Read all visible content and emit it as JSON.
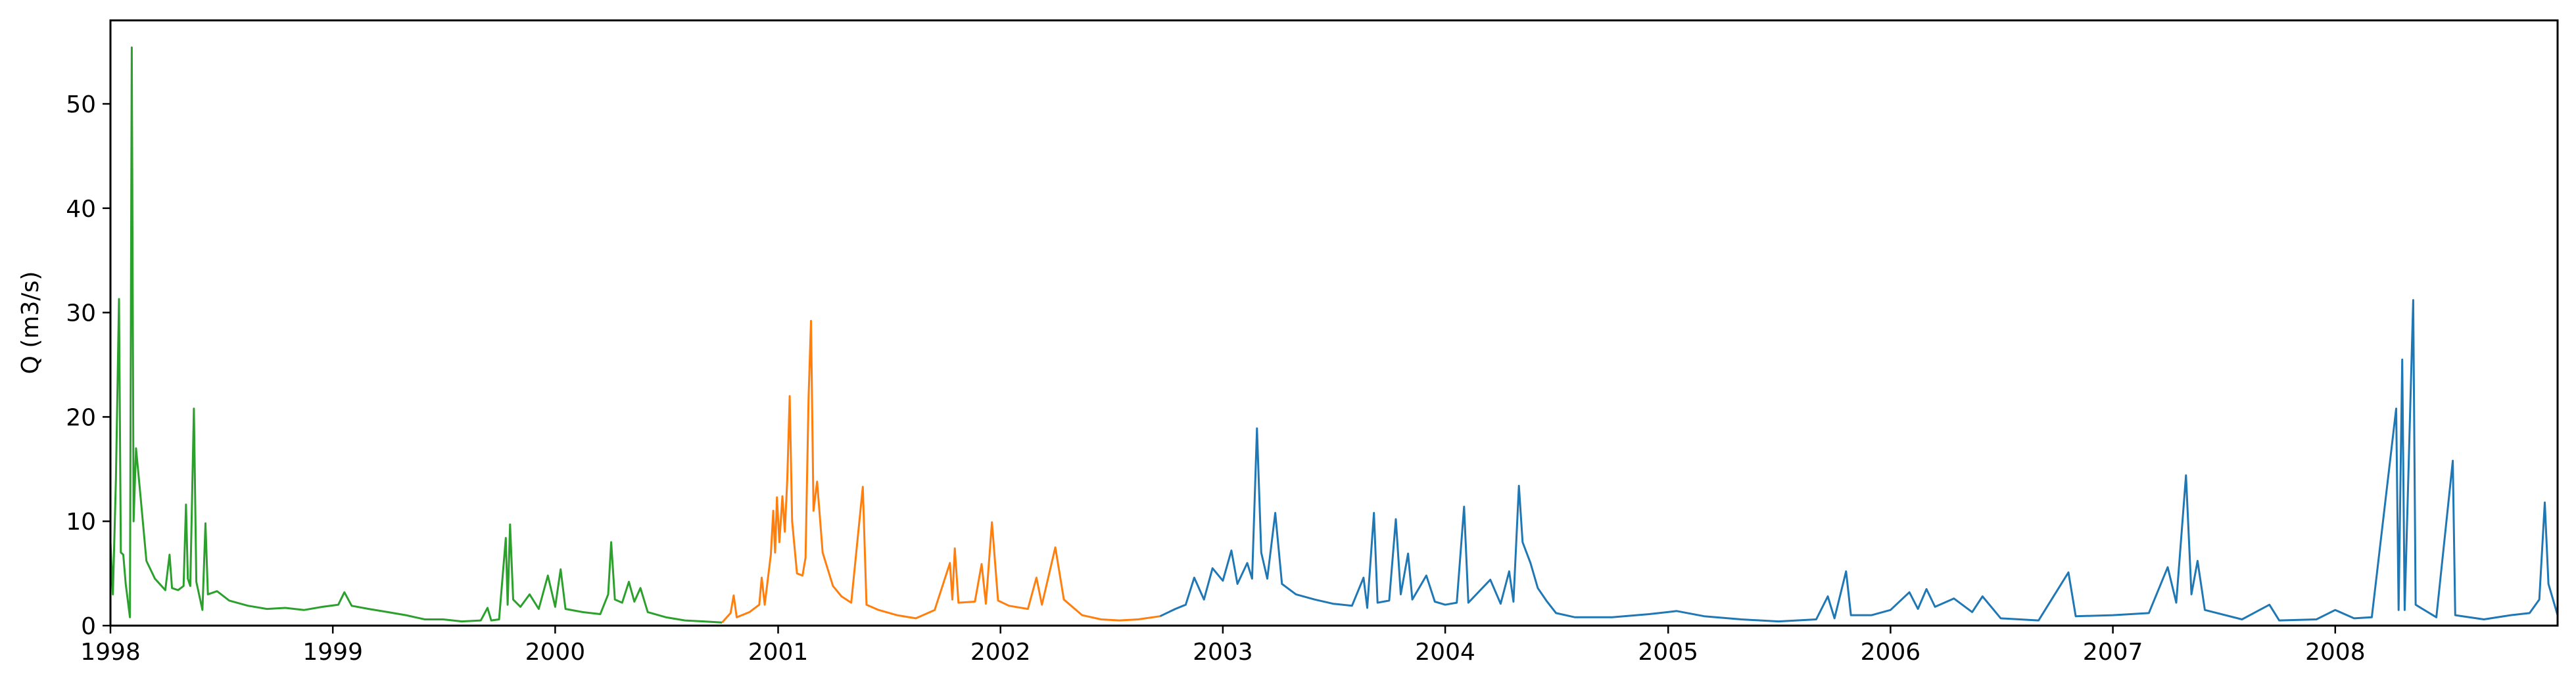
{
  "chart_data": {
    "type": "line",
    "title": "",
    "xlabel": "",
    "ylabel": "Q (m3/s)",
    "xlim": [
      "1998-01-01",
      "2008-12-31"
    ],
    "ylim": [
      0,
      58
    ],
    "grid": false,
    "x_ticks": [
      "1998",
      "1999",
      "2000",
      "2001",
      "2002",
      "2003",
      "2004",
      "2005",
      "2006",
      "2007",
      "2008"
    ],
    "y_ticks": [
      "0",
      "10",
      "20",
      "30",
      "40",
      "50"
    ],
    "y_tick_values": [
      0,
      10,
      20,
      30,
      40,
      50
    ],
    "series": [
      {
        "color": "#2ca02c",
        "points": [
          [
            "1998-01-01",
            8
          ],
          [
            "1998-01-05",
            3
          ],
          [
            "1998-01-10",
            14
          ],
          [
            "1998-01-15",
            31.3
          ],
          [
            "1998-01-18",
            7
          ],
          [
            "1998-01-22",
            6.8
          ],
          [
            "1998-01-26",
            4
          ],
          [
            "1998-02-02",
            0.8
          ],
          [
            "1998-02-05",
            55.4
          ],
          [
            "1998-02-08",
            10
          ],
          [
            "1998-02-12",
            17
          ],
          [
            "1998-02-20",
            12
          ],
          [
            "1998-03-01",
            6.2
          ],
          [
            "1998-03-15",
            4.5
          ],
          [
            "1998-04-01",
            3.4
          ],
          [
            "1998-04-08",
            6.8
          ],
          [
            "1998-04-12",
            3.6
          ],
          [
            "1998-04-22",
            3.4
          ],
          [
            "1998-05-01",
            3.8
          ],
          [
            "1998-05-05",
            11.6
          ],
          [
            "1998-05-08",
            4.5
          ],
          [
            "1998-05-12",
            3.8
          ],
          [
            "1998-05-18",
            20.8
          ],
          [
            "1998-05-22",
            4.2
          ],
          [
            "1998-06-01",
            1.5
          ],
          [
            "1998-06-06",
            9.8
          ],
          [
            "1998-06-10",
            3
          ],
          [
            "1998-06-25",
            3.3
          ],
          [
            "1998-07-15",
            2.4
          ],
          [
            "1998-08-15",
            1.9
          ],
          [
            "1998-09-15",
            1.6
          ],
          [
            "1998-10-15",
            1.7
          ],
          [
            "1998-11-15",
            1.5
          ],
          [
            "1998-12-15",
            1.8
          ],
          [
            "1999-01-10",
            2
          ],
          [
            "1999-01-20",
            3.2
          ],
          [
            "1999-02-01",
            1.9
          ],
          [
            "1999-03-01",
            1.6
          ],
          [
            "1999-04-01",
            1.3
          ],
          [
            "1999-05-01",
            1
          ],
          [
            "1999-06-01",
            0.6
          ],
          [
            "1999-07-01",
            0.6
          ],
          [
            "1999-08-01",
            0.4
          ],
          [
            "1999-09-01",
            0.5
          ],
          [
            "1999-09-12",
            1.7
          ],
          [
            "1999-09-18",
            0.5
          ],
          [
            "1999-10-01",
            0.6
          ],
          [
            "1999-10-12",
            8.4
          ],
          [
            "1999-10-15",
            2
          ],
          [
            "1999-10-19",
            9.7
          ],
          [
            "1999-10-24",
            2.5
          ],
          [
            "1999-11-05",
            1.8
          ],
          [
            "1999-11-20",
            3
          ],
          [
            "1999-12-05",
            1.6
          ],
          [
            "1999-12-20",
            4.8
          ],
          [
            "2000-01-01",
            1.8
          ],
          [
            "2000-01-10",
            5.4
          ],
          [
            "2000-01-18",
            1.6
          ],
          [
            "2000-02-15",
            1.3
          ],
          [
            "2000-03-15",
            1.1
          ],
          [
            "2000-03-28",
            3
          ],
          [
            "2000-04-02",
            8
          ],
          [
            "2000-04-08",
            2.5
          ],
          [
            "2000-04-20",
            2.2
          ],
          [
            "2000-05-01",
            4.2
          ],
          [
            "2000-05-10",
            2.3
          ],
          [
            "2000-05-20",
            3.6
          ],
          [
            "2000-06-01",
            1.3
          ],
          [
            "2000-07-01",
            0.8
          ],
          [
            "2000-08-01",
            0.5
          ],
          [
            "2000-09-01",
            0.4
          ],
          [
            "2000-10-01",
            0.3
          ]
        ]
      },
      {
        "color": "#ff7f0e",
        "points": [
          [
            "2000-10-01",
            0.3
          ],
          [
            "2000-10-15",
            1.2
          ],
          [
            "2000-10-20",
            2.9
          ],
          [
            "2000-10-25",
            0.8
          ],
          [
            "2000-11-15",
            1.3
          ],
          [
            "2000-12-01",
            2
          ],
          [
            "2000-12-05",
            4.6
          ],
          [
            "2000-12-10",
            2
          ],
          [
            "2000-12-20",
            6.8
          ],
          [
            "2000-12-24",
            11
          ],
          [
            "2000-12-27",
            7
          ],
          [
            "2000-12-30",
            12.3
          ],
          [
            "2001-01-03",
            8
          ],
          [
            "2001-01-08",
            12.4
          ],
          [
            "2001-01-12",
            9
          ],
          [
            "2001-01-16",
            14
          ],
          [
            "2001-01-20",
            22
          ],
          [
            "2001-01-24",
            10
          ],
          [
            "2001-02-01",
            5
          ],
          [
            "2001-02-10",
            4.8
          ],
          [
            "2001-02-15",
            6.5
          ],
          [
            "2001-02-20",
            21.8
          ],
          [
            "2001-02-24",
            29.2
          ],
          [
            "2001-02-28",
            11
          ],
          [
            "2001-03-06",
            13.8
          ],
          [
            "2001-03-15",
            7
          ],
          [
            "2001-04-01",
            3.8
          ],
          [
            "2001-04-15",
            2.8
          ],
          [
            "2001-05-01",
            2.2
          ],
          [
            "2001-05-20",
            13.3
          ],
          [
            "2001-05-26",
            2
          ],
          [
            "2001-06-15",
            1.5
          ],
          [
            "2001-07-15",
            1
          ],
          [
            "2001-08-15",
            0.7
          ],
          [
            "2001-09-15",
            1.5
          ],
          [
            "2001-10-10",
            6
          ],
          [
            "2001-10-14",
            2.5
          ],
          [
            "2001-10-18",
            7.4
          ],
          [
            "2001-10-24",
            2.2
          ],
          [
            "2001-11-20",
            2.3
          ],
          [
            "2001-12-01",
            5.9
          ],
          [
            "2001-12-08",
            2.1
          ],
          [
            "2001-12-18",
            9.9
          ],
          [
            "2001-12-28",
            2.4
          ],
          [
            "2002-01-15",
            1.9
          ],
          [
            "2002-02-15",
            1.6
          ],
          [
            "2002-03-01",
            4.6
          ],
          [
            "2002-03-10",
            2
          ],
          [
            "2002-04-01",
            7.5
          ],
          [
            "2002-04-15",
            2.5
          ],
          [
            "2002-05-15",
            1
          ],
          [
            "2002-06-15",
            0.6
          ],
          [
            "2002-07-15",
            0.5
          ],
          [
            "2002-08-15",
            0.6
          ],
          [
            "2002-09-20",
            0.9
          ]
        ]
      },
      {
        "color": "#1f77b4",
        "points": [
          [
            "2002-09-20",
            0.9
          ],
          [
            "2002-10-15",
            1.6
          ],
          [
            "2002-11-01",
            2
          ],
          [
            "2002-11-15",
            4.6
          ],
          [
            "2002-12-01",
            2.5
          ],
          [
            "2002-12-15",
            5.5
          ],
          [
            "2003-01-01",
            4.3
          ],
          [
            "2003-01-15",
            7.2
          ],
          [
            "2003-01-25",
            4
          ],
          [
            "2003-02-10",
            6
          ],
          [
            "2003-02-18",
            4.5
          ],
          [
            "2003-02-26",
            18.9
          ],
          [
            "2003-03-05",
            7
          ],
          [
            "2003-03-15",
            4.5
          ],
          [
            "2003-03-28",
            10.8
          ],
          [
            "2003-04-08",
            4
          ],
          [
            "2003-05-01",
            3
          ],
          [
            "2003-06-01",
            2.5
          ],
          [
            "2003-07-01",
            2.1
          ],
          [
            "2003-08-01",
            1.9
          ],
          [
            "2003-08-20",
            4.6
          ],
          [
            "2003-08-26",
            1.7
          ],
          [
            "2003-09-06",
            10.8
          ],
          [
            "2003-09-12",
            2.2
          ],
          [
            "2003-10-01",
            2.4
          ],
          [
            "2003-10-12",
            10.2
          ],
          [
            "2003-10-20",
            3
          ],
          [
            "2003-11-01",
            6.9
          ],
          [
            "2003-11-08",
            2.5
          ],
          [
            "2003-12-01",
            4.8
          ],
          [
            "2003-12-15",
            2.3
          ],
          [
            "2004-01-01",
            2
          ],
          [
            "2004-01-20",
            2.2
          ],
          [
            "2004-02-01",
            11.4
          ],
          [
            "2004-02-08",
            2.2
          ],
          [
            "2004-03-15",
            4.4
          ],
          [
            "2004-04-01",
            2.1
          ],
          [
            "2004-04-15",
            5.2
          ],
          [
            "2004-04-22",
            2.3
          ],
          [
            "2004-05-01",
            13.4
          ],
          [
            "2004-05-07",
            8
          ],
          [
            "2004-05-20",
            6
          ],
          [
            "2004-06-01",
            3.6
          ],
          [
            "2004-06-15",
            2.4
          ],
          [
            "2004-07-01",
            1.2
          ],
          [
            "2004-08-01",
            0.8
          ],
          [
            "2004-10-01",
            0.8
          ],
          [
            "2004-12-01",
            1.1
          ],
          [
            "2005-01-15",
            1.4
          ],
          [
            "2005-03-01",
            0.9
          ],
          [
            "2005-05-01",
            0.6
          ],
          [
            "2005-07-01",
            0.4
          ],
          [
            "2005-09-01",
            0.6
          ],
          [
            "2005-09-20",
            2.8
          ],
          [
            "2005-10-01",
            0.7
          ],
          [
            "2005-10-20",
            5.2
          ],
          [
            "2005-10-28",
            1
          ],
          [
            "2005-12-01",
            1
          ],
          [
            "2006-01-01",
            1.5
          ],
          [
            "2006-02-01",
            3.2
          ],
          [
            "2006-02-15",
            1.6
          ],
          [
            "2006-03-01",
            3.5
          ],
          [
            "2006-03-15",
            1.8
          ],
          [
            "2006-04-15",
            2.6
          ],
          [
            "2006-05-15",
            1.3
          ],
          [
            "2006-06-01",
            2.8
          ],
          [
            "2006-07-01",
            0.7
          ],
          [
            "2006-09-01",
            0.5
          ],
          [
            "2006-10-20",
            5.1
          ],
          [
            "2006-11-01",
            0.9
          ],
          [
            "2007-01-01",
            1
          ],
          [
            "2007-03-01",
            1.2
          ],
          [
            "2007-04-01",
            5.6
          ],
          [
            "2007-04-15",
            2.2
          ],
          [
            "2007-05-01",
            14.4
          ],
          [
            "2007-05-10",
            3
          ],
          [
            "2007-05-20",
            6.2
          ],
          [
            "2007-06-01",
            1.5
          ],
          [
            "2007-08-01",
            0.6
          ],
          [
            "2007-09-15",
            2
          ],
          [
            "2007-10-01",
            0.5
          ],
          [
            "2007-12-01",
            0.6
          ],
          [
            "2008-01-01",
            1.5
          ],
          [
            "2008-02-01",
            0.7
          ],
          [
            "2008-03-01",
            0.8
          ],
          [
            "2008-04-10",
            20.8
          ],
          [
            "2008-04-14",
            1.5
          ],
          [
            "2008-04-20",
            25.5
          ],
          [
            "2008-04-24",
            1.5
          ],
          [
            "2008-05-08",
            31.2
          ],
          [
            "2008-05-12",
            2
          ],
          [
            "2008-06-15",
            0.8
          ],
          [
            "2008-07-12",
            15.8
          ],
          [
            "2008-07-16",
            1
          ],
          [
            "2008-09-01",
            0.6
          ],
          [
            "2008-10-15",
            1
          ],
          [
            "2008-11-15",
            1.2
          ],
          [
            "2008-12-01",
            2.5
          ],
          [
            "2008-12-10",
            11.8
          ],
          [
            "2008-12-16",
            4
          ],
          [
            "2008-12-31",
            1
          ]
        ]
      }
    ]
  }
}
